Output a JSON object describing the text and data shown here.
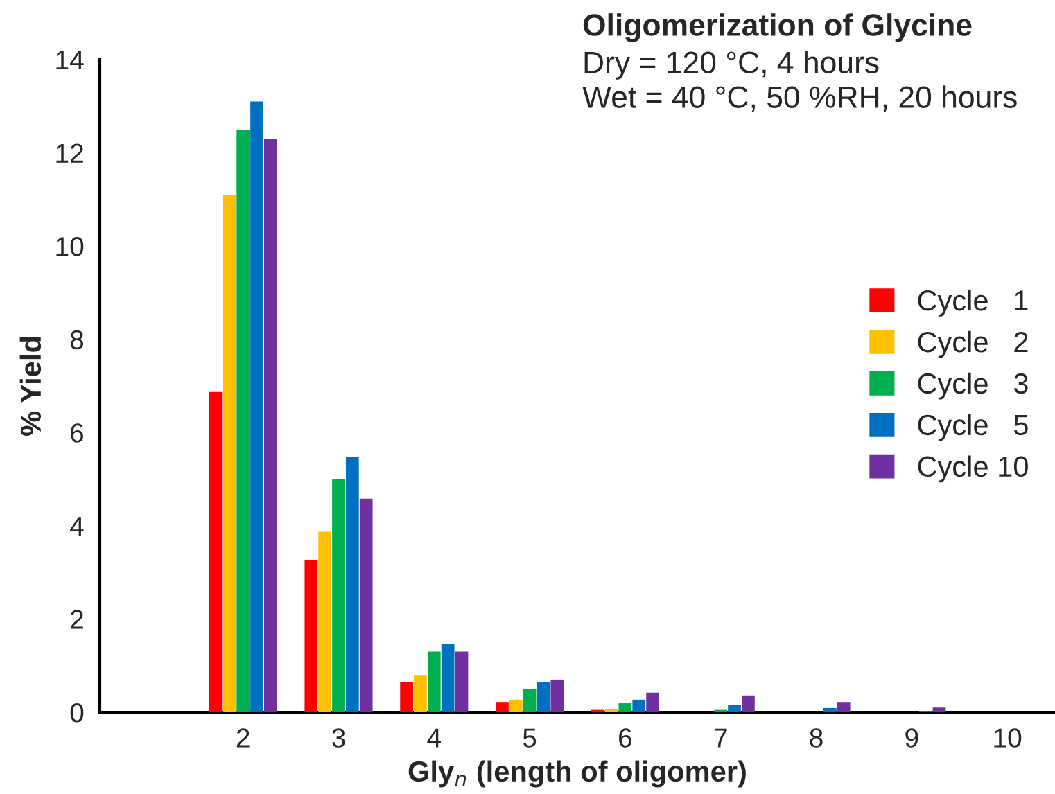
{
  "chart_data": {
    "type": "bar",
    "title": "Oligomerization of Glycine",
    "annotations": [
      "Dry = 120 °C, 4 hours",
      "Wet = 40 °C, 50 %RH, 20 hours"
    ],
    "xlabel": "Gly$_{n}$ (length of oligomer)",
    "ylabel": "% Yield",
    "categories": [
      null,
      "2",
      "3",
      "4",
      "5",
      "6",
      "7",
      "8",
      "9",
      "10"
    ],
    "series": [
      {
        "name": "Cycle   1",
        "color": "#ff0000",
        "values": [
          null,
          6.87,
          3.27,
          0.65,
          0.22,
          0.05,
          null,
          null,
          null,
          null
        ]
      },
      {
        "name": "Cycle   2",
        "color": "#ffc000",
        "values": [
          null,
          11.1,
          3.87,
          0.8,
          0.27,
          0.06,
          null,
          null,
          null,
          null
        ]
      },
      {
        "name": "Cycle   3",
        "color": "#00b050",
        "values": [
          null,
          12.5,
          5.0,
          1.3,
          0.5,
          0.2,
          0.05,
          null,
          null,
          null
        ]
      },
      {
        "name": "Cycle   5",
        "color": "#0070c0",
        "values": [
          null,
          13.1,
          5.48,
          1.46,
          0.65,
          0.27,
          0.16,
          0.09,
          0.03,
          null
        ]
      },
      {
        "name": "Cycle 10",
        "color": "#7030a0",
        "values": [
          null,
          12.3,
          4.58,
          1.3,
          0.7,
          0.42,
          0.36,
          0.22,
          0.1,
          null
        ]
      }
    ],
    "ylim": [
      0,
      14
    ],
    "yticks": [
      0,
      2,
      4,
      6,
      8,
      10,
      12,
      14
    ],
    "grid": false,
    "legend": "right"
  }
}
